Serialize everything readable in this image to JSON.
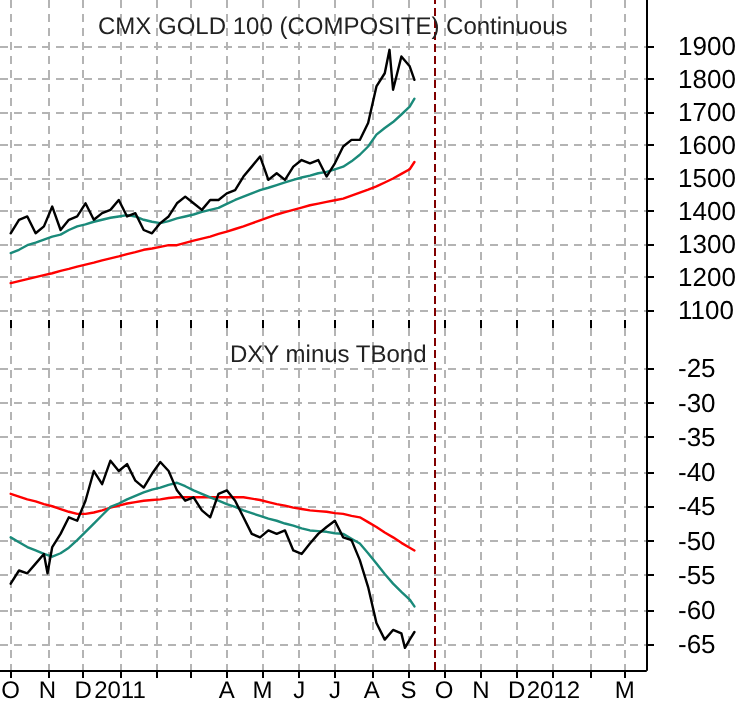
{
  "chart_data": [
    {
      "type": "line",
      "title": "CMX GOLD 100 (COMPOSITE) Continuous",
      "tick_labels": "y",
      "grid": true,
      "marker": "none",
      "xlim": [
        "2010-09-22",
        "2012-03-19"
      ],
      "xticks": [
        {
          "value": "2010-10-01",
          "label": null
        },
        {
          "value": "2010-11-01",
          "label": null
        },
        {
          "value": "2010-12-01",
          "label": null
        },
        {
          "value": "2011-01-01",
          "label": null
        },
        {
          "value": "2011-02-01",
          "label": null
        },
        {
          "value": "2011-03-01",
          "label": null
        },
        {
          "value": "2011-04-01",
          "label": null
        },
        {
          "value": "2011-05-01",
          "label": null
        },
        {
          "value": "2011-06-01",
          "label": null
        },
        {
          "value": "2011-07-01",
          "label": null
        },
        {
          "value": "2011-08-01",
          "label": null
        },
        {
          "value": "2011-09-01",
          "label": null
        },
        {
          "value": "2011-10-01",
          "label": null
        },
        {
          "value": "2011-11-01",
          "label": null
        },
        {
          "value": "2011-12-01",
          "label": null
        },
        {
          "value": "2012-01-01",
          "label": null
        },
        {
          "value": "2012-02-01",
          "label": null
        },
        {
          "value": "2012-03-01",
          "label": null
        }
      ],
      "ylim": [
        1045,
        2039
      ],
      "yticks": [
        1100,
        1200,
        1300,
        1400,
        1500,
        1600,
        1700,
        1800,
        1900
      ],
      "ref_lines": [
        {
          "axis": "x",
          "value": "2011-09-23",
          "color": "#800000",
          "line_style": "dashed"
        }
      ],
      "x": [
        "2010-10-01",
        "2010-10-08",
        "2010-10-15",
        "2010-10-22",
        "2010-10-29",
        "2010-11-05",
        "2010-11-12",
        "2010-11-19",
        "2010-11-26",
        "2010-12-03",
        "2010-12-10",
        "2010-12-17",
        "2010-12-24",
        "2010-12-31",
        "2011-01-07",
        "2011-01-14",
        "2011-01-21",
        "2011-01-28",
        "2011-02-04",
        "2011-02-11",
        "2011-02-18",
        "2011-02-25",
        "2011-03-04",
        "2011-03-11",
        "2011-03-18",
        "2011-03-25",
        "2011-04-01",
        "2011-04-08",
        "2011-04-15",
        "2011-04-22",
        "2011-04-29",
        "2011-05-06",
        "2011-05-13",
        "2011-05-20",
        "2011-05-27",
        "2011-06-03",
        "2011-06-10",
        "2011-06-17",
        "2011-06-24",
        "2011-07-01",
        "2011-07-08",
        "2011-07-15",
        "2011-07-22",
        "2011-07-29",
        "2011-08-05",
        "2011-08-12",
        "2011-08-19",
        "2011-08-26",
        "2011-09-02",
        "2011-09-06"
      ],
      "series": [
        {
          "color": "#ff0000",
          "values": [
            1181,
            1187,
            1193,
            1199,
            1205,
            1211,
            1218,
            1224,
            1231,
            1237,
            1243,
            1250,
            1256,
            1262,
            1269,
            1275,
            1282,
            1286,
            1291,
            1296,
            1296,
            1303,
            1310,
            1316,
            1322,
            1330,
            1337,
            1345,
            1353,
            1362,
            1371,
            1380,
            1389,
            1396,
            1403,
            1410,
            1417,
            1422,
            1427,
            1432,
            1437,
            1446,
            1455,
            1464,
            1474,
            1486,
            1498,
            1512,
            1526,
            1548
          ]
        },
        {
          "color": "#1a8a7a",
          "values": [
            1272,
            1282,
            1296,
            1304,
            1313,
            1322,
            1328,
            1342,
            1353,
            1359,
            1367,
            1373,
            1379,
            1383,
            1387,
            1383,
            1373,
            1367,
            1363,
            1369,
            1377,
            1383,
            1389,
            1397,
            1403,
            1409,
            1421,
            1433,
            1443,
            1453,
            1463,
            1470,
            1478,
            1486,
            1494,
            1501,
            1507,
            1514,
            1518,
            1526,
            1534,
            1550,
            1570,
            1595,
            1631,
            1651,
            1669,
            1692,
            1716,
            1740
          ]
        },
        {
          "color": "#000000",
          "x": [
            "2010-10-01",
            "2010-10-08",
            "2010-10-15",
            "2010-10-22",
            "2010-10-29",
            "2010-11-05",
            "2010-11-12",
            "2010-11-19",
            "2010-11-26",
            "2010-12-03",
            "2010-12-10",
            "2010-12-17",
            "2010-12-24",
            "2010-12-31",
            "2011-01-07",
            "2011-01-14",
            "2011-01-21",
            "2011-01-28",
            "2011-02-04",
            "2011-02-11",
            "2011-02-18",
            "2011-02-25",
            "2011-03-04",
            "2011-03-11",
            "2011-03-18",
            "2011-03-25",
            "2011-04-01",
            "2011-04-08",
            "2011-04-15",
            "2011-04-22",
            "2011-04-29",
            "2011-05-06",
            "2011-05-13",
            "2011-05-20",
            "2011-05-27",
            "2011-06-03",
            "2011-06-10",
            "2011-06-17",
            "2011-06-24",
            "2011-07-01",
            "2011-07-08",
            "2011-07-15",
            "2011-07-22",
            "2011-07-29",
            "2011-08-05",
            "2011-08-12",
            "2011-08-16",
            "2011-08-19",
            "2011-08-26",
            "2011-09-02",
            "2011-09-06"
          ],
          "values": [
            1332,
            1373,
            1383,
            1332,
            1353,
            1413,
            1342,
            1373,
            1383,
            1423,
            1373,
            1393,
            1403,
            1433,
            1383,
            1393,
            1342,
            1332,
            1363,
            1383,
            1423,
            1443,
            1423,
            1403,
            1433,
            1433,
            1453,
            1463,
            1504,
            1534,
            1565,
            1494,
            1514,
            1494,
            1534,
            1554,
            1544,
            1554,
            1504,
            1544,
            1595,
            1615,
            1615,
            1666,
            1777,
            1817,
            1888,
            1767,
            1868,
            1838,
            1797
          ]
        }
      ]
    },
    {
      "type": "line",
      "title": "DXY minus TBond",
      "grid": true,
      "marker": "none",
      "xlim": [
        "2010-09-22",
        "2012-03-19"
      ],
      "xticks": [
        {
          "value": "2010-10-01",
          "label": "O"
        },
        {
          "value": "2010-11-01",
          "label": "N"
        },
        {
          "value": "2010-12-01",
          "label": "D"
        },
        {
          "value": "2011-01-01",
          "label": "2011"
        },
        {
          "value": "2011-02-01",
          "label": null
        },
        {
          "value": "2011-03-01",
          "label": null
        },
        {
          "value": "2011-04-01",
          "label": "A"
        },
        {
          "value": "2011-05-01",
          "label": "M"
        },
        {
          "value": "2011-06-01",
          "label": "J"
        },
        {
          "value": "2011-07-01",
          "label": "J"
        },
        {
          "value": "2011-08-01",
          "label": "A"
        },
        {
          "value": "2011-09-01",
          "label": "S"
        },
        {
          "value": "2011-10-01",
          "label": "O"
        },
        {
          "value": "2011-11-01",
          "label": "N"
        },
        {
          "value": "2011-12-01",
          "label": "D"
        },
        {
          "value": "2012-01-01",
          "label": "2012"
        },
        {
          "value": "2012-02-01",
          "label": null
        },
        {
          "value": "2012-03-01",
          "label": "M"
        }
      ],
      "ylim": [
        -68.7,
        -19.2
      ],
      "yticks": [
        -65,
        -60,
        -55,
        -50,
        -45,
        -40,
        -35,
        -30,
        -25
      ],
      "ref_lines": [
        {
          "axis": "x",
          "value": "2011-09-23",
          "color": "#800000",
          "line_style": "dashed"
        }
      ],
      "x": [
        "2010-10-01",
        "2010-10-08",
        "2010-10-15",
        "2010-10-22",
        "2010-10-29",
        "2010-11-05",
        "2010-11-12",
        "2010-11-19",
        "2010-11-26",
        "2010-12-03",
        "2010-12-10",
        "2010-12-17",
        "2010-12-24",
        "2010-12-31",
        "2011-01-07",
        "2011-01-14",
        "2011-01-21",
        "2011-01-28",
        "2011-02-04",
        "2011-02-11",
        "2011-02-18",
        "2011-02-25",
        "2011-03-04",
        "2011-03-11",
        "2011-03-18",
        "2011-03-25",
        "2011-04-01",
        "2011-04-08",
        "2011-04-15",
        "2011-04-22",
        "2011-04-29",
        "2011-05-06",
        "2011-05-13",
        "2011-05-20",
        "2011-05-27",
        "2011-06-03",
        "2011-06-10",
        "2011-06-17",
        "2011-06-24",
        "2011-07-01",
        "2011-07-08",
        "2011-07-15",
        "2011-07-22",
        "2011-07-29",
        "2011-08-05",
        "2011-08-12",
        "2011-08-19",
        "2011-08-26",
        "2011-09-02",
        "2011-09-06"
      ],
      "series": [
        {
          "color": "#ff0000",
          "values": [
            -43.2,
            -43.6,
            -44,
            -44.3,
            -44.7,
            -45,
            -45.4,
            -45.8,
            -46.1,
            -46.1,
            -45.9,
            -45.6,
            -45.2,
            -44.9,
            -44.6,
            -44.4,
            -44.2,
            -44.1,
            -44,
            -43.8,
            -43.7,
            -43.7,
            -43.7,
            -43.7,
            -43.7,
            -43.7,
            -43.7,
            -43.7,
            -43.7,
            -43.9,
            -44.1,
            -44.4,
            -44.7,
            -44.9,
            -45.2,
            -45.4,
            -45.6,
            -45.7,
            -45.8,
            -46,
            -46.1,
            -46.4,
            -46.6,
            -47.3,
            -48,
            -48.8,
            -49.5,
            -50.3,
            -51,
            -51.4
          ]
        },
        {
          "color": "#1a8a7a",
          "values": [
            -49.5,
            -50.2,
            -50.9,
            -51.4,
            -51.9,
            -52.3,
            -51.8,
            -51,
            -49.9,
            -48.7,
            -47.5,
            -46.3,
            -45.1,
            -44.6,
            -44,
            -43.5,
            -43,
            -42.6,
            -42.3,
            -41.9,
            -41.6,
            -42.1,
            -42.7,
            -43.2,
            -43.7,
            -44.2,
            -44.7,
            -45.1,
            -45.6,
            -46,
            -46.4,
            -46.8,
            -47.1,
            -47.5,
            -47.8,
            -48.2,
            -48.5,
            -48.6,
            -48.7,
            -48.9,
            -49,
            -49.7,
            -50.4,
            -51.8,
            -53.3,
            -54.8,
            -56.2,
            -57.4,
            -58.5,
            -59.5
          ]
        },
        {
          "color": "#000000",
          "x": [
            "2010-10-01",
            "2010-10-08",
            "2010-10-15",
            "2010-10-22",
            "2010-10-29",
            "2010-11-01",
            "2010-11-05",
            "2010-11-12",
            "2010-11-19",
            "2010-11-26",
            "2010-12-03",
            "2010-12-10",
            "2010-12-17",
            "2010-12-24",
            "2010-12-31",
            "2011-01-07",
            "2011-01-14",
            "2011-01-21",
            "2011-01-28",
            "2011-02-04",
            "2011-02-11",
            "2011-02-18",
            "2011-02-25",
            "2011-03-04",
            "2011-03-11",
            "2011-03-18",
            "2011-03-25",
            "2011-04-01",
            "2011-04-08",
            "2011-04-15",
            "2011-04-22",
            "2011-04-29",
            "2011-05-06",
            "2011-05-13",
            "2011-05-20",
            "2011-05-27",
            "2011-06-03",
            "2011-06-10",
            "2011-06-17",
            "2011-06-24",
            "2011-07-01",
            "2011-07-08",
            "2011-07-15",
            "2011-07-22",
            "2011-07-29",
            "2011-08-05",
            "2011-08-12",
            "2011-08-19",
            "2011-08-26",
            "2011-08-29",
            "2011-09-02",
            "2011-09-06"
          ],
          "values": [
            -56.2,
            -54.3,
            -54.7,
            -53.3,
            -51.9,
            -54.7,
            -50.9,
            -49,
            -46.6,
            -47.1,
            -44.2,
            -39.9,
            -41.8,
            -38.4,
            -39.9,
            -38.9,
            -41.3,
            -42.3,
            -40.3,
            -38.6,
            -39.9,
            -42.7,
            -44.2,
            -43.7,
            -45.6,
            -46.6,
            -43.2,
            -42.7,
            -44.2,
            -46.6,
            -49,
            -49.5,
            -48.5,
            -49,
            -48.5,
            -51.4,
            -51.9,
            -50.4,
            -49,
            -48,
            -47.1,
            -49.5,
            -49.9,
            -52.8,
            -56.7,
            -61.9,
            -64.3,
            -62.9,
            -63.4,
            -65.5,
            -64.3,
            -63.2
          ]
        }
      ]
    }
  ]
}
